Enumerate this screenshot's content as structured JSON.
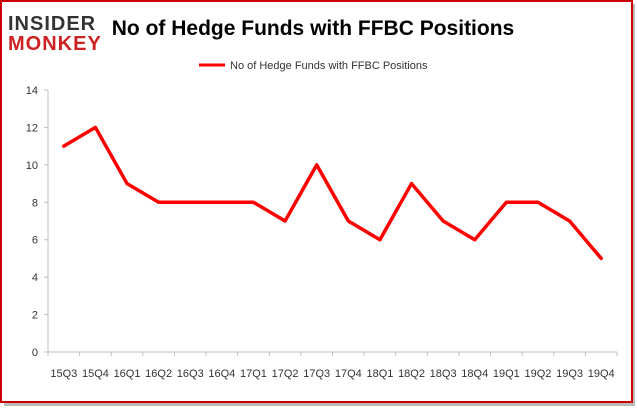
{
  "logo": {
    "line1": "INSIDER",
    "line2": "MONKEY",
    "color_dark": "#333333",
    "color_red": "#cc2222"
  },
  "chart_data": {
    "type": "line",
    "title": "No of Hedge Funds with FFBC Positions",
    "xlabel": "",
    "ylabel": "",
    "categories": [
      "15Q3",
      "15Q4",
      "16Q1",
      "16Q2",
      "16Q3",
      "16Q4",
      "17Q1",
      "17Q2",
      "17Q3",
      "17Q4",
      "18Q1",
      "18Q2",
      "18Q3",
      "18Q4",
      "19Q1",
      "19Q2",
      "19Q3",
      "19Q4"
    ],
    "series": [
      {
        "name": "No of Hedge Funds with FFBC Positions",
        "values": [
          11,
          12,
          9,
          8,
          8,
          8,
          8,
          7,
          10,
          7,
          6,
          9,
          7,
          6,
          8,
          8,
          7,
          5
        ],
        "color": "#ff0000"
      }
    ],
    "ylim": [
      0,
      14
    ],
    "yticks": [
      "0",
      "2",
      "4",
      "6",
      "8",
      "10",
      "12",
      "14"
    ],
    "grid": false,
    "legend": "top-center",
    "border_color": "#cc0000"
  }
}
